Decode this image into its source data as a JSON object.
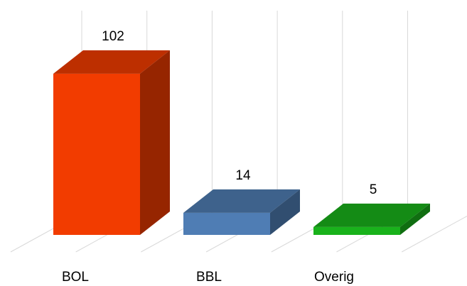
{
  "chart_data": {
    "type": "bar",
    "style": "3d-column",
    "categories": [
      "BOL",
      "BBL",
      "Overig"
    ],
    "values": [
      102,
      14,
      5
    ],
    "data_labels": [
      "102",
      "14",
      "5"
    ],
    "colors": [
      "#f23c00",
      "#4f7db4",
      "#19b21b"
    ],
    "title": "",
    "xlabel": "",
    "ylabel": "",
    "ylim": [
      0,
      110
    ],
    "grid": true,
    "legend": "none"
  }
}
